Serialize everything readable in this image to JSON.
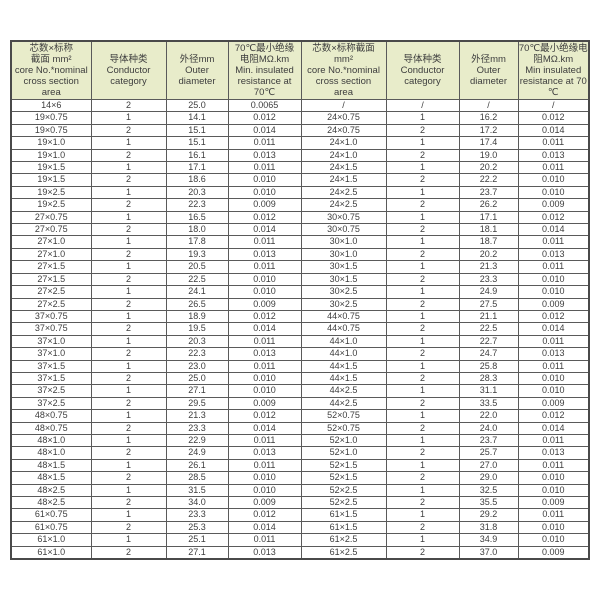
{
  "table": {
    "header_bg": "#e8ecca",
    "border_color": "#5a5a5a",
    "headers": [
      "芯数×标称\n截面 mm²\ncore No.*nominal\ncross section\narea",
      "导体种类\nConductor\ncategory",
      "外径mm\nOuter\ndiameter",
      "70℃最小绝缘\n电阻MΩ.km\nMin. insulated\nresistance at\n70℃",
      "芯数×标称截面\nmm²\ncore No.*nominal\ncross section\narea",
      "导体种类\nConductor\ncategory",
      "外径mm\nOuter\ndiameter",
      "70℃最小绝缘电\n阻MΩ.km\nMin insulated\nresistance at 70\n℃"
    ],
    "rows": [
      [
        "14×6",
        "2",
        "25.0",
        "0.0065",
        "/",
        "/",
        "/",
        "/"
      ],
      [
        "19×0.75",
        "1",
        "14.1",
        "0.012",
        "24×0.75",
        "1",
        "16.2",
        "0.012"
      ],
      [
        "19×0.75",
        "2",
        "15.1",
        "0.014",
        "24×0.75",
        "2",
        "17.2",
        "0.014"
      ],
      [
        "19×1.0",
        "1",
        "15.1",
        "0.011",
        "24×1.0",
        "1",
        "17.4",
        "0.011"
      ],
      [
        "19×1.0",
        "2",
        "16.1",
        "0.013",
        "24×1.0",
        "2",
        "19.0",
        "0.013"
      ],
      [
        "19×1.5",
        "1",
        "17.1",
        "0.011",
        "24×1.5",
        "1",
        "20.2",
        "0.011"
      ],
      [
        "19×1.5",
        "2",
        "18.6",
        "0.010",
        "24×1.5",
        "2",
        "22.2",
        "0.010"
      ],
      [
        "19×2.5",
        "1",
        "20.3",
        "0.010",
        "24×2.5",
        "1",
        "23.7",
        "0.010"
      ],
      [
        "19×2.5",
        "2",
        "22.3",
        "0.009",
        "24×2.5",
        "2",
        "26.2",
        "0.009"
      ],
      [
        "27×0.75",
        "1",
        "16.5",
        "0.012",
        "30×0.75",
        "1",
        "17.1",
        "0.012"
      ],
      [
        "27×0.75",
        "2",
        "18.0",
        "0.014",
        "30×0.75",
        "2",
        "18.1",
        "0.014"
      ],
      [
        "27×1.0",
        "1",
        "17.8",
        "0.011",
        "30×1.0",
        "1",
        "18.7",
        "0.011"
      ],
      [
        "27×1.0",
        "2",
        "19.3",
        "0.013",
        "30×1.0",
        "2",
        "20.2",
        "0.013"
      ],
      [
        "27×1.5",
        "1",
        "20.5",
        "0.011",
        "30×1.5",
        "1",
        "21.3",
        "0.011"
      ],
      [
        "27×1.5",
        "2",
        "22.5",
        "0.010",
        "30×1.5",
        "2",
        "23.3",
        "0.010"
      ],
      [
        "27×2.5",
        "1",
        "24.1",
        "0.010",
        "30×2.5",
        "1",
        "24.9",
        "0.010"
      ],
      [
        "27×2.5",
        "2",
        "26.5",
        "0.009",
        "30×2.5",
        "2",
        "27.5",
        "0.009"
      ],
      [
        "37×0.75",
        "1",
        "18.9",
        "0.012",
        "44×0.75",
        "1",
        "21.1",
        "0.012"
      ],
      [
        "37×0.75",
        "2",
        "19.5",
        "0.014",
        "44×0.75",
        "2",
        "22.5",
        "0.014"
      ],
      [
        "37×1.0",
        "1",
        "20.3",
        "0.011",
        "44×1.0",
        "1",
        "22.7",
        "0.011"
      ],
      [
        "37×1.0",
        "2",
        "22.3",
        "0.013",
        "44×1.0",
        "2",
        "24.7",
        "0.013"
      ],
      [
        "37×1.5",
        "1",
        "23.0",
        "0.011",
        "44×1.5",
        "1",
        "25.8",
        "0.011"
      ],
      [
        "37×1.5",
        "2",
        "25.0",
        "0.010",
        "44×1.5",
        "2",
        "28.3",
        "0.010"
      ],
      [
        "37×2.5",
        "1",
        "27.1",
        "0.010",
        "44×2.5",
        "1",
        "31.1",
        "0.010"
      ],
      [
        "37×2.5",
        "2",
        "29.5",
        "0.009",
        "44×2.5",
        "2",
        "33.5",
        "0.009"
      ],
      [
        "48×0.75",
        "1",
        "21.3",
        "0.012",
        "52×0.75",
        "1",
        "22.0",
        "0.012"
      ],
      [
        "48×0.75",
        "2",
        "23.3",
        "0.014",
        "52×0.75",
        "2",
        "24.0",
        "0.014"
      ],
      [
        "48×1.0",
        "1",
        "22.9",
        "0.011",
        "52×1.0",
        "1",
        "23.7",
        "0.011"
      ],
      [
        "48×1.0",
        "2",
        "24.9",
        "0.013",
        "52×1.0",
        "2",
        "25.7",
        "0.013"
      ],
      [
        "48×1.5",
        "1",
        "26.1",
        "0.011",
        "52×1.5",
        "1",
        "27.0",
        "0.011"
      ],
      [
        "48×1.5",
        "2",
        "28.5",
        "0.010",
        "52×1.5",
        "2",
        "29.0",
        "0.010"
      ],
      [
        "48×2.5",
        "1",
        "31.5",
        "0.010",
        "52×2.5",
        "1",
        "32.5",
        "0.010"
      ],
      [
        "48×2.5",
        "2",
        "34.0",
        "0.009",
        "52×2.5",
        "2",
        "35.5",
        "0.009"
      ],
      [
        "61×0.75",
        "1",
        "23.3",
        "0.012",
        "61×1.5",
        "1",
        "29.2",
        "0.011"
      ],
      [
        "61×0.75",
        "2",
        "25.3",
        "0.014",
        "61×1.5",
        "2",
        "31.8",
        "0.010"
      ],
      [
        "61×1.0",
        "1",
        "25.1",
        "0.011",
        "61×2.5",
        "1",
        "34.9",
        "0.010"
      ],
      [
        "61×1.0",
        "2",
        "27.1",
        "0.013",
        "61×2.5",
        "2",
        "37.0",
        "0.009"
      ]
    ]
  }
}
